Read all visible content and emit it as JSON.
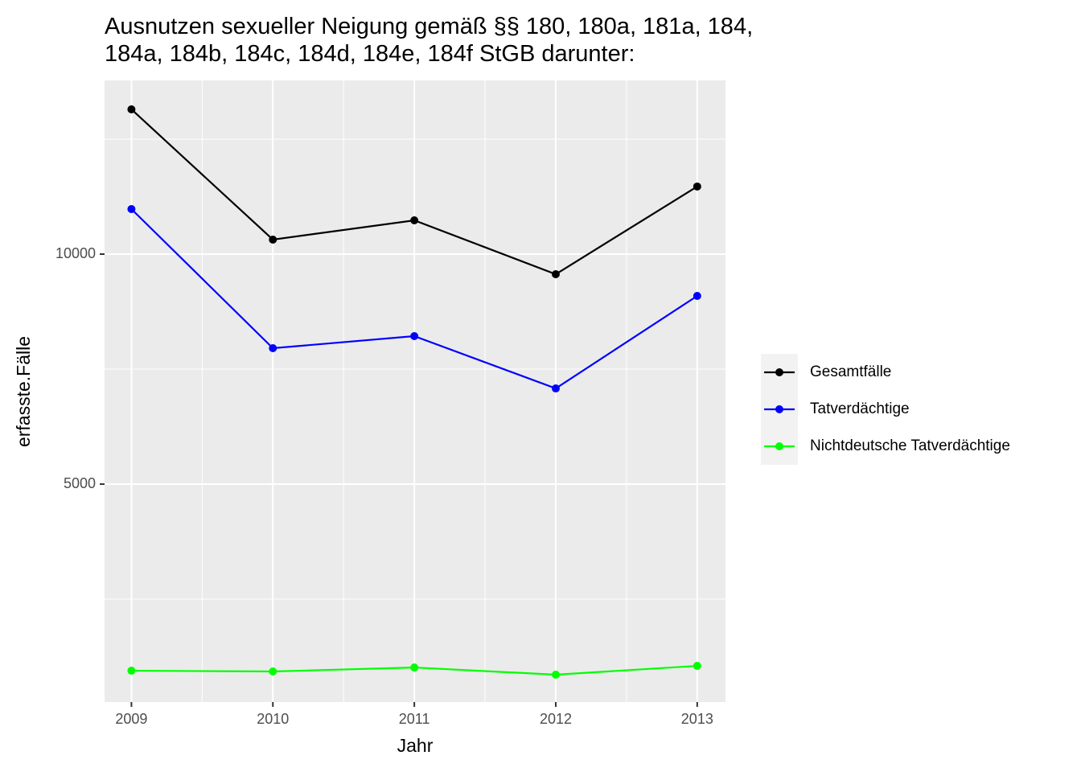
{
  "chart_data": {
    "type": "line",
    "title": [
      "Ausnutzen sexueller Neigung gemäß §§ 180, 180a, 181a, 184,",
      "184a, 184b, 184c, 184d, 184e, 184f StGB darunter:"
    ],
    "x_label": "Jahr",
    "y_label": "erfasste.Fälle",
    "x": [
      2009,
      2010,
      2011,
      2012,
      2013
    ],
    "series": [
      {
        "name": "Gesamtfälle",
        "color": "#000000",
        "values": [
          13147,
          10315,
          10734,
          9563,
          11469
        ]
      },
      {
        "name": "Tatverdächtige",
        "color": "#0000ff",
        "values": [
          10979,
          7955,
          8217,
          7080,
          9091
        ]
      },
      {
        "name": "Nichtdeutsche Tatverdächtige",
        "color": "#00ff00",
        "values": [
          944,
          927,
          1014,
          857,
          1049
        ]
      }
    ],
    "xlim": [
      2008.81,
      2013.2
    ],
    "xticks": [
      2009,
      2010,
      2011,
      2012,
      2013
    ],
    "x_minor_ticks": [
      2009.5,
      2010.5,
      2011.5,
      2012.5
    ],
    "ylim": [
      263,
      13776
    ],
    "yticks": [
      5000,
      10000
    ],
    "y_minor_ticks": [
      2500,
      7500,
      12500
    ],
    "grid": true,
    "legend_position": "right"
  }
}
